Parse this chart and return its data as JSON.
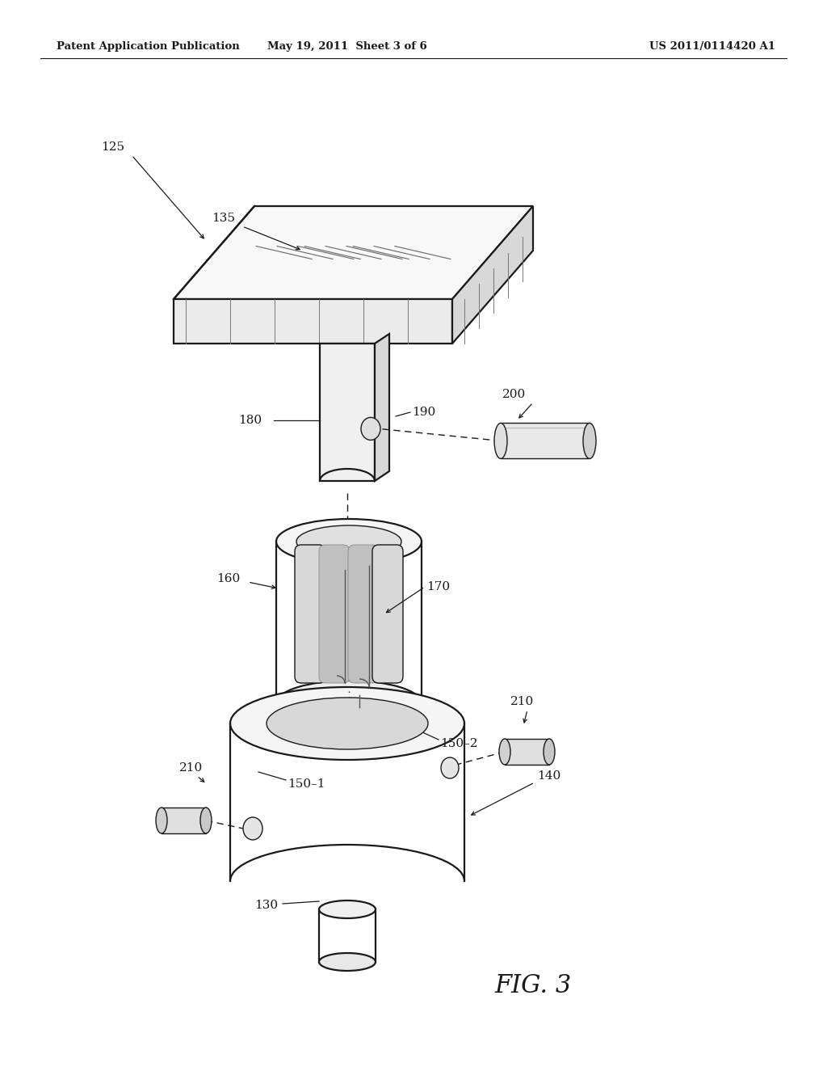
{
  "background_color": "#ffffff",
  "header_left": "Patent Application Publication",
  "header_center": "May 19, 2011  Sheet 3 of 6",
  "header_right": "US 2011/0114420 A1",
  "fig_label": "FIG. 3",
  "line_color": "#1a1a1a",
  "text_color": "#1a1a1a",
  "lw_main": 1.6,
  "lw_thin": 1.0,
  "lw_detail": 0.7
}
